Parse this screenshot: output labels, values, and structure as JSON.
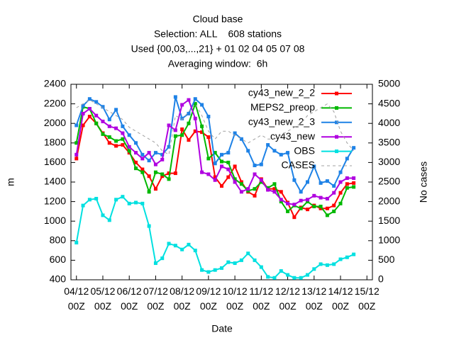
{
  "chart_data": {
    "type": "line",
    "title": "Cloud base",
    "subtitle": [
      "Selection: ALL    608 stations",
      "Used {00,03,...,21} + 01 02 04 05 07 08",
      "Averaging window:  6h"
    ],
    "xlabel": "Date",
    "ylabel": "m",
    "y2label": "No cases",
    "legend": "upper right",
    "x": [
      0,
      6,
      12,
      18,
      24,
      30,
      36,
      42,
      48,
      54,
      60,
      66,
      72,
      78,
      84,
      90,
      96,
      102,
      108,
      114,
      120,
      126,
      132,
      138,
      144,
      150,
      156,
      162,
      168,
      174,
      180,
      186,
      192,
      198,
      204,
      210,
      216,
      222,
      228,
      234,
      240,
      246,
      252
    ],
    "xlim": [
      -5,
      269
    ],
    "xticks": [
      {
        "value": 0,
        "label": "04/12\n00Z"
      },
      {
        "value": 24,
        "label": "05/12\n00Z"
      },
      {
        "value": 48,
        "label": "06/12\n00Z"
      },
      {
        "value": 72,
        "label": "07/12\n00Z"
      },
      {
        "value": 96,
        "label": "08/12\n00Z"
      },
      {
        "value": 120,
        "label": "09/12\n00Z"
      },
      {
        "value": 144,
        "label": "10/12\n00Z"
      },
      {
        "value": 168,
        "label": "11/12\n00Z"
      },
      {
        "value": 192,
        "label": "12/12\n00Z"
      },
      {
        "value": 216,
        "label": "13/12\n00Z"
      },
      {
        "value": 240,
        "label": "14/12\n00Z"
      },
      {
        "value": 264,
        "label": "15/12\n00Z"
      }
    ],
    "ylim": [
      400,
      2400
    ],
    "yticks": [
      400,
      600,
      800,
      1000,
      1200,
      1400,
      1600,
      1800,
      2000,
      2200,
      2400
    ],
    "y2lim": [
      0,
      5000
    ],
    "y2ticks": [
      0,
      500,
      1000,
      1500,
      2000,
      2500,
      3000,
      3500,
      4000,
      4500,
      5000
    ],
    "series": [
      {
        "name": "cy43_new_2_2",
        "color": "#ff0000",
        "values": [
          1640,
          1980,
          2070,
          2000,
          1900,
          1800,
          1770,
          1780,
          1700,
          1600,
          1530,
          1460,
          1330,
          1460,
          1490,
          1490,
          1940,
          1830,
          1920,
          1910,
          1860,
          1450,
          1360,
          1450,
          1560,
          1400,
          1300,
          1260,
          1430,
          1330,
          1330,
          1300,
          1190,
          1040,
          1140,
          1120,
          1160,
          1130,
          1130,
          1160,
          1290,
          1380,
          1390
        ]
      },
      {
        "name": "MEPS2_preop",
        "color": "#00b800",
        "values": [
          1800,
          2170,
          2150,
          2000,
          1890,
          1860,
          1820,
          1840,
          1720,
          1540,
          1500,
          1300,
          1500,
          1480,
          1430,
          1870,
          1880,
          2000,
          2200,
          1970,
          1640,
          1700,
          1610,
          1600,
          1430,
          1380,
          1310,
          1330,
          1400,
          1340,
          1380,
          1200,
          1100,
          1160,
          1130,
          1200,
          1150,
          1150,
          1060,
          1100,
          1180,
          1340,
          1350
        ]
      },
      {
        "name": "cy43_new_2_3",
        "color": "#1e82e6",
        "values": [
          1980,
          2180,
          2250,
          2220,
          2170,
          2040,
          2140,
          1970,
          1880,
          1800,
          1680,
          1620,
          1700,
          1680,
          1760,
          2270,
          2050,
          2100,
          2250,
          2190,
          2070,
          1590,
          1680,
          1700,
          1900,
          1840,
          1720,
          1570,
          1580,
          1780,
          1720,
          1680,
          1700,
          1420,
          1300,
          1400,
          1560,
          1390,
          1410,
          1360,
          1500,
          1640,
          1750
        ]
      },
      {
        "name": "cy43_new",
        "color": "#b000e0",
        "values": [
          1680,
          2100,
          2150,
          2080,
          2020,
          1970,
          1950,
          1900,
          1760,
          1700,
          1640,
          1700,
          1580,
          1630,
          1980,
          1930,
          2190,
          2240,
          2050,
          1500,
          1480,
          1420,
          1560,
          1530,
          1400,
          1300,
          1330,
          1480,
          1420,
          1320,
          1300,
          1220,
          1180,
          1170,
          1210,
          1220,
          1260,
          1240,
          1230,
          1290,
          1400,
          1440,
          1440
        ]
      },
      {
        "name": "OBS",
        "color": "#00e0e0",
        "values": [
          780,
          1160,
          1220,
          1230,
          1060,
          1010,
          1220,
          1250,
          1180,
          1190,
          1180,
          950,
          570,
          620,
          770,
          750,
          710,
          760,
          700,
          500,
          480,
          500,
          520,
          580,
          570,
          600,
          670,
          600,
          530,
          430,
          420,
          490,
          450,
          420,
          420,
          450,
          510,
          560,
          550,
          560,
          610,
          630,
          660
        ]
      },
      {
        "name": "CASES",
        "color": "#a0a0a0",
        "axis": "y2",
        "line_style": "dashed",
        "values": [
          4400,
          4500,
          4600,
          4500,
          4400,
          4300,
          4200,
          4100,
          3900,
          3800,
          3700,
          3600,
          3500,
          3300,
          3200,
          4200,
          4100,
          4300,
          4500,
          4200,
          3800,
          3600,
          3800,
          3800,
          3700,
          3600,
          3500,
          3600,
          3700,
          3600,
          3600,
          3700,
          3800,
          3900,
          4000,
          4200,
          4300,
          4400,
          4500,
          4300,
          3800,
          3500,
          3300
        ]
      }
    ]
  }
}
